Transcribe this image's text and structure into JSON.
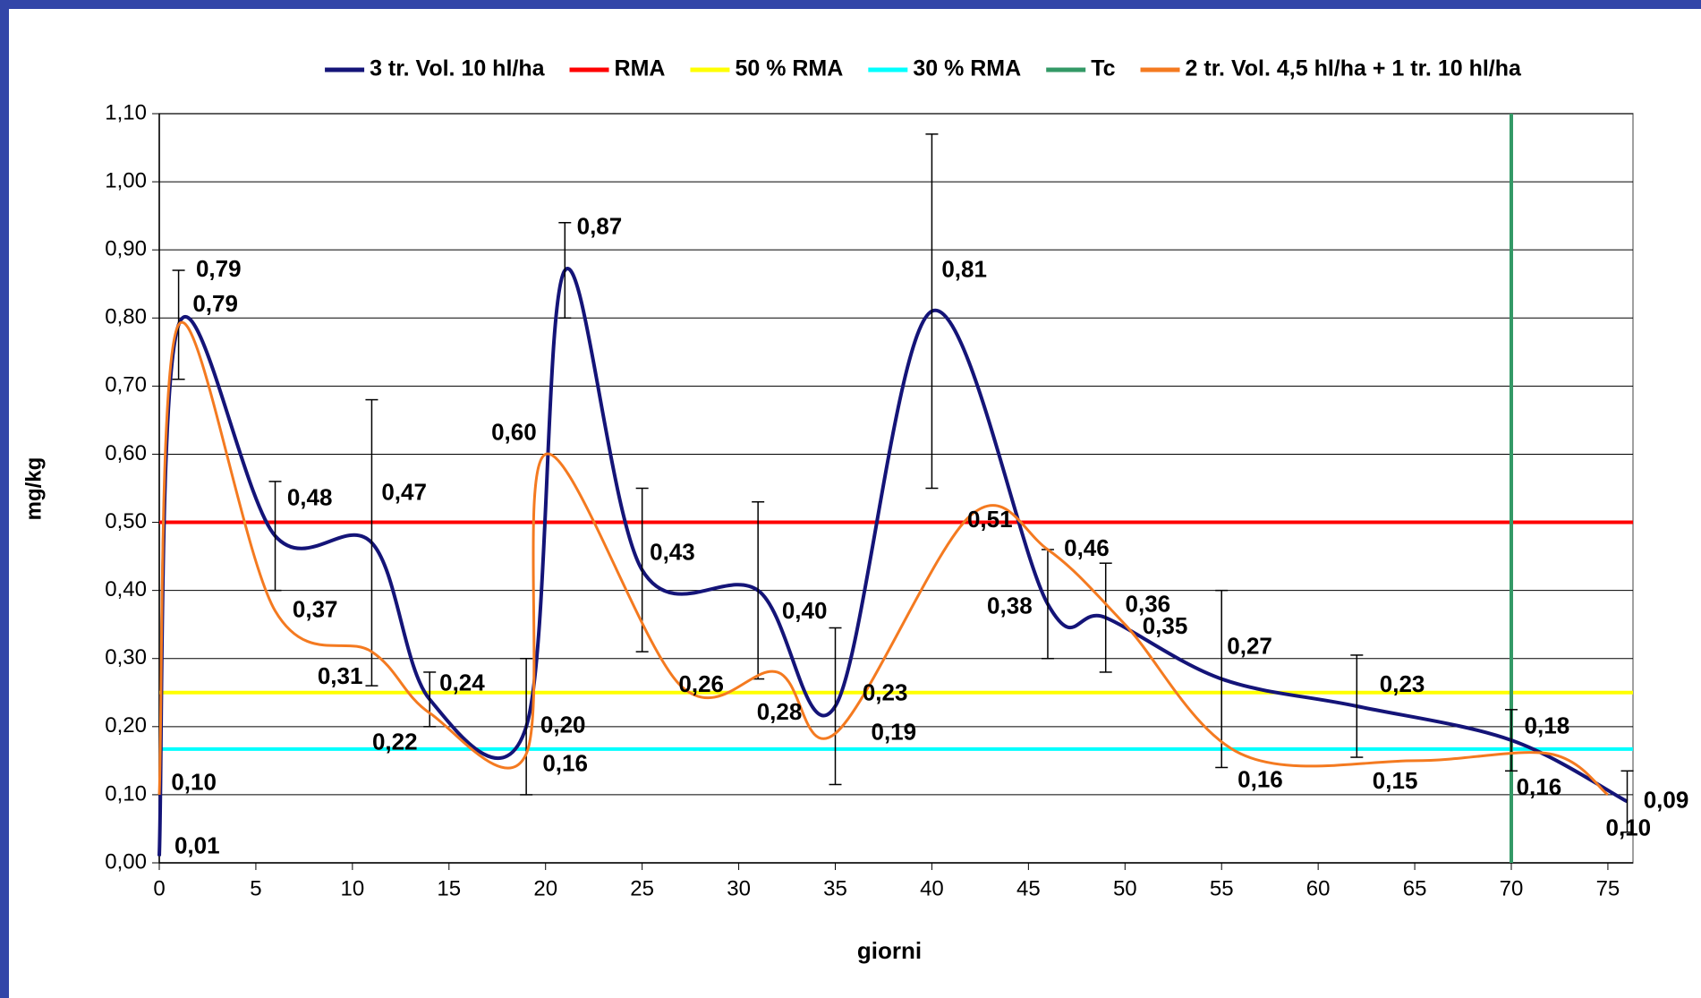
{
  "chart_data": {
    "type": "line",
    "xlabel": "giorni",
    "ylabel": "mg/kg",
    "xlim": [
      0,
      76.3
    ],
    "ylim": [
      0,
      1.1
    ],
    "xticks": [
      0,
      5,
      10,
      15,
      20,
      25,
      30,
      35,
      40,
      45,
      50,
      55,
      60,
      65,
      70,
      75
    ],
    "yticks": [
      {
        "value": 0,
        "label": "0,00"
      },
      {
        "value": 0.1,
        "label": "0,10"
      },
      {
        "value": 0.2,
        "label": "0,20"
      },
      {
        "value": 0.3,
        "label": "0,30"
      },
      {
        "value": 0.4,
        "label": "0,40"
      },
      {
        "value": 0.5,
        "label": "0,50"
      },
      {
        "value": 0.6,
        "label": "0,60"
      },
      {
        "value": 0.7,
        "label": "0,70"
      },
      {
        "value": 0.8,
        "label": "0,80"
      },
      {
        "value": 0.9,
        "label": "0,90"
      },
      {
        "value": 1.0,
        "label": "1,00"
      },
      {
        "value": 1.1,
        "label": "1,10"
      }
    ],
    "grid": true,
    "smooth": true,
    "legend": "top",
    "series": [
      {
        "name": "3 tr. Vol. 10 hl/ha",
        "color": "#141478",
        "x": [
          0,
          1,
          6,
          11,
          14,
          19,
          21,
          25,
          31,
          35,
          40,
          46,
          49,
          55,
          62,
          70,
          76
        ],
        "values": [
          0.01,
          0.79,
          0.48,
          0.47,
          0.24,
          0.2,
          0.87,
          0.43,
          0.4,
          0.23,
          0.81,
          0.38,
          0.36,
          0.27,
          0.23,
          0.18,
          0.09
        ],
        "value_labels": [
          "0,01",
          "0,79",
          "0,48",
          "0,47",
          "0,24",
          "0,20",
          "0,87",
          "0,43",
          "0,40",
          "0,23",
          "0,81",
          "0,38",
          "0,36",
          "0,27",
          "0,23",
          "0,18",
          "0,09"
        ],
        "errors": [
          null,
          0.08,
          0.08,
          0.21,
          0.04,
          0.1,
          0.07,
          0.12,
          0.13,
          0.115,
          0.26,
          0.08,
          0.08,
          0.13,
          0.075,
          0.045,
          0.045
        ]
      },
      {
        "name": "RMA",
        "color": "#ff0000",
        "value": 0.5
      },
      {
        "name": "50 % RMA",
        "color": "#ffff00",
        "value": 0.25
      },
      {
        "name": "30 % RMA",
        "color": "#00ffff",
        "value": 0.167
      },
      {
        "name": "Tc",
        "color": "#339966",
        "xvalue": 70
      },
      {
        "name": "2 tr. Vol. 4,5 hl/ha + 1 tr. 10 hl/ha",
        "color": "#f47a20",
        "x": [
          0,
          1,
          6,
          11,
          14,
          19,
          20,
          27,
          32,
          35,
          42,
          46,
          50,
          56,
          65,
          72,
          75
        ],
        "values": [
          0.1,
          0.79,
          0.37,
          0.31,
          0.22,
          0.16,
          0.6,
          0.26,
          0.28,
          0.19,
          0.51,
          0.46,
          0.35,
          0.16,
          0.15,
          0.16,
          0.1
        ],
        "value_labels": [
          "0,10",
          "0,79",
          "0,37",
          "0,31",
          "0,22",
          "0,16",
          "0,60",
          "0,26",
          "0,28",
          "0,19",
          "0,51",
          "0,46",
          "0,35",
          "0,16",
          "0,15",
          "0,16",
          "0,10"
        ]
      }
    ]
  }
}
